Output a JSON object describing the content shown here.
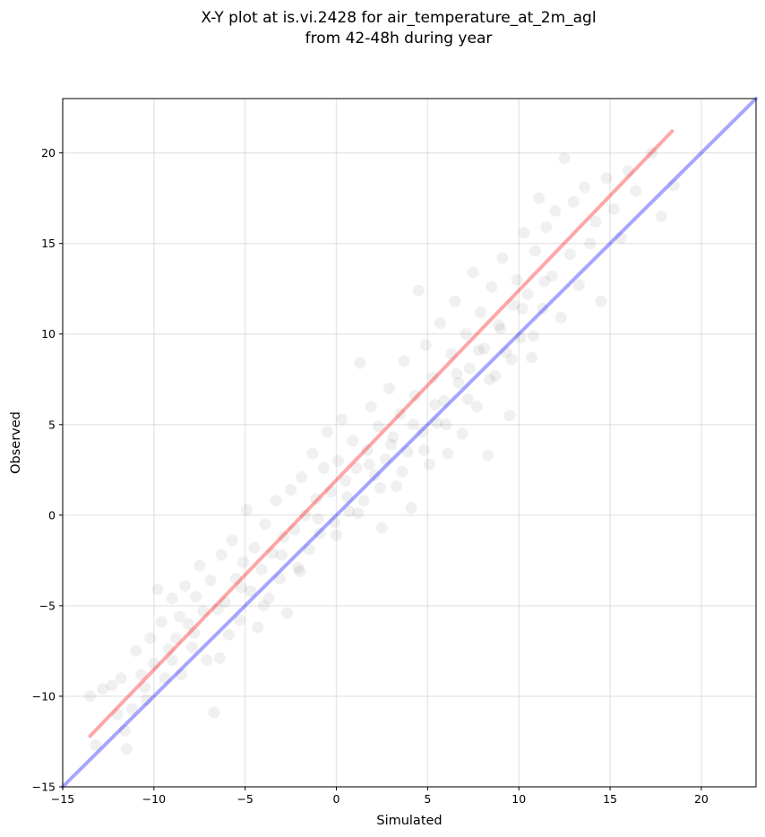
{
  "chart_data": {
    "type": "scatter",
    "title_lines": [
      "X-Y plot at is.vi.2428 for air_temperature_at_2m_agl",
      "from 42-48h during year"
    ],
    "xlabel": "Simulated",
    "ylabel": "Observed",
    "xlim": [
      -15,
      23
    ],
    "ylim": [
      -15,
      23
    ],
    "xticks": [
      -15,
      -10,
      -5,
      0,
      5,
      10,
      15,
      20
    ],
    "yticks": [
      -15,
      -10,
      -5,
      0,
      5,
      10,
      15,
      20
    ],
    "xtick_labels": [
      "−15",
      "−10",
      "−5",
      "0",
      "5",
      "10",
      "15",
      "20"
    ],
    "ytick_labels": [
      "−15",
      "−10",
      "−5",
      "0",
      "5",
      "10",
      "15",
      "20"
    ],
    "grid": true,
    "point_color": "#000000",
    "point_alpha": 0.06,
    "points": [
      [
        -13.5,
        -10.0
      ],
      [
        -13.2,
        -12.7
      ],
      [
        -12.8,
        -9.6
      ],
      [
        -12.3,
        -9.4
      ],
      [
        -11.8,
        -9.0
      ],
      [
        -11.6,
        -11.9
      ],
      [
        -11.5,
        -12.9
      ],
      [
        -11.2,
        -10.7
      ],
      [
        -11.0,
        -7.5
      ],
      [
        -10.7,
        -8.8
      ],
      [
        -10.4,
        -10.2
      ],
      [
        -10.2,
        -6.8
      ],
      [
        -10.0,
        -8.2
      ],
      [
        -9.8,
        -4.1
      ],
      [
        -9.6,
        -5.9
      ],
      [
        -9.4,
        -9.0
      ],
      [
        -9.2,
        -7.4
      ],
      [
        -9.0,
        -4.6
      ],
      [
        -8.8,
        -6.8
      ],
      [
        -8.6,
        -5.6
      ],
      [
        -8.5,
        -8.8
      ],
      [
        -8.3,
        -3.9
      ],
      [
        -8.1,
        -6.0
      ],
      [
        -7.9,
        -7.3
      ],
      [
        -7.7,
        -4.5
      ],
      [
        -7.5,
        -2.8
      ],
      [
        -7.3,
        -5.3
      ],
      [
        -7.1,
        -8.0
      ],
      [
        -6.9,
        -3.6
      ],
      [
        -6.7,
        -10.9
      ],
      [
        -6.5,
        -5.2
      ],
      [
        -6.3,
        -2.2
      ],
      [
        -6.1,
        -4.8
      ],
      [
        -5.9,
        -6.6
      ],
      [
        -5.7,
        -1.4
      ],
      [
        -5.5,
        -3.5
      ],
      [
        -5.3,
        -5.8
      ],
      [
        -5.1,
        -2.6
      ],
      [
        -4.9,
        0.3
      ],
      [
        -4.7,
        -4.2
      ],
      [
        -4.5,
        -1.8
      ],
      [
        -4.3,
        -6.2
      ],
      [
        -4.1,
        -3.0
      ],
      [
        -3.9,
        -0.5
      ],
      [
        -3.7,
        -4.6
      ],
      [
        -3.5,
        -2.1
      ],
      [
        -3.3,
        0.8
      ],
      [
        -3.1,
        -3.5
      ],
      [
        -2.9,
        -1.2
      ],
      [
        -2.7,
        -5.4
      ],
      [
        -2.5,
        1.4
      ],
      [
        -2.3,
        -0.8
      ],
      [
        -2.1,
        -2.9
      ],
      [
        -1.9,
        2.1
      ],
      [
        -1.7,
        0.0
      ],
      [
        -1.5,
        -1.9
      ],
      [
        -1.3,
        3.4
      ],
      [
        -1.1,
        0.9
      ],
      [
        -0.9,
        -1.0
      ],
      [
        -0.7,
        2.6
      ],
      [
        -0.5,
        4.6
      ],
      [
        -0.3,
        1.3
      ],
      [
        -0.1,
        -0.4
      ],
      [
        0.1,
        3.0
      ],
      [
        0.3,
        5.3
      ],
      [
        0.5,
        1.9
      ],
      [
        0.7,
        0.2
      ],
      [
        0.9,
        4.1
      ],
      [
        1.1,
        2.6
      ],
      [
        1.3,
        8.4
      ],
      [
        1.5,
        0.8
      ],
      [
        1.7,
        3.6
      ],
      [
        1.9,
        6.0
      ],
      [
        2.1,
        2.2
      ],
      [
        2.3,
        4.9
      ],
      [
        2.5,
        -0.7
      ],
      [
        2.7,
        3.1
      ],
      [
        2.9,
        7.0
      ],
      [
        3.1,
        4.3
      ],
      [
        3.3,
        1.6
      ],
      [
        3.5,
        5.6
      ],
      [
        3.7,
        8.5
      ],
      [
        3.9,
        3.5
      ],
      [
        4.1,
        0.4
      ],
      [
        4.3,
        6.6
      ],
      [
        4.5,
        12.4
      ],
      [
        4.7,
        4.6
      ],
      [
        4.9,
        9.4
      ],
      [
        5.1,
        2.8
      ],
      [
        5.3,
        7.6
      ],
      [
        5.5,
        5.1
      ],
      [
        5.7,
        10.6
      ],
      [
        5.9,
        6.3
      ],
      [
        6.1,
        3.4
      ],
      [
        6.3,
        8.9
      ],
      [
        6.5,
        11.8
      ],
      [
        6.7,
        7.3
      ],
      [
        6.9,
        4.5
      ],
      [
        7.1,
        10.0
      ],
      [
        7.3,
        8.1
      ],
      [
        7.5,
        13.4
      ],
      [
        7.7,
        6.0
      ],
      [
        7.9,
        11.2
      ],
      [
        8.1,
        9.2
      ],
      [
        8.3,
        3.3
      ],
      [
        8.5,
        12.6
      ],
      [
        8.7,
        7.7
      ],
      [
        8.9,
        10.5
      ],
      [
        9.1,
        14.2
      ],
      [
        9.3,
        9.0
      ],
      [
        9.5,
        5.5
      ],
      [
        9.7,
        11.6
      ],
      [
        9.9,
        13.0
      ],
      [
        10.1,
        9.8
      ],
      [
        10.3,
        15.6
      ],
      [
        10.5,
        12.2
      ],
      [
        10.7,
        8.7
      ],
      [
        10.9,
        14.6
      ],
      [
        11.1,
        17.5
      ],
      [
        11.3,
        11.4
      ],
      [
        11.5,
        15.9
      ],
      [
        11.8,
        13.2
      ],
      [
        12.0,
        16.8
      ],
      [
        12.3,
        10.9
      ],
      [
        12.5,
        19.7
      ],
      [
        12.8,
        14.4
      ],
      [
        13.0,
        17.3
      ],
      [
        13.3,
        12.7
      ],
      [
        13.6,
        18.1
      ],
      [
        13.9,
        15.0
      ],
      [
        14.2,
        16.2
      ],
      [
        14.5,
        11.8
      ],
      [
        14.8,
        18.6
      ],
      [
        15.2,
        16.9
      ],
      [
        15.6,
        15.3
      ],
      [
        16.4,
        17.9
      ],
      [
        17.3,
        20.0
      ],
      [
        17.8,
        16.5
      ],
      [
        18.5,
        18.2
      ],
      [
        16.0,
        19.0
      ],
      [
        -12.0,
        -11.0
      ],
      [
        -10.5,
        -9.5
      ],
      [
        -9.0,
        -8.0
      ],
      [
        -7.8,
        -6.5
      ],
      [
        -6.4,
        -7.9
      ],
      [
        -5.2,
        -4.0
      ],
      [
        -4.0,
        -5.0
      ],
      [
        -3.0,
        -2.2
      ],
      [
        -2.0,
        -3.1
      ],
      [
        -1.0,
        -0.2
      ],
      [
        0.0,
        -1.1
      ],
      [
        0.6,
        1.0
      ],
      [
        1.2,
        0.1
      ],
      [
        1.8,
        2.8
      ],
      [
        2.4,
        1.5
      ],
      [
        3.0,
        3.9
      ],
      [
        3.6,
        2.4
      ],
      [
        4.2,
        5.0
      ],
      [
        4.8,
        3.6
      ],
      [
        5.4,
        6.1
      ],
      [
        6.0,
        5.0
      ],
      [
        6.6,
        7.8
      ],
      [
        7.2,
        6.4
      ],
      [
        7.8,
        9.1
      ],
      [
        8.4,
        7.5
      ],
      [
        9.0,
        10.3
      ],
      [
        9.6,
        8.6
      ],
      [
        10.2,
        11.4
      ],
      [
        10.8,
        9.9
      ],
      [
        11.4,
        12.9
      ]
    ],
    "lines": [
      {
        "color": "#ff0000",
        "alpha": 0.35,
        "x": [
          -13.5,
          18.4
        ],
        "y": [
          -12.2,
          21.2
        ]
      },
      {
        "color": "#0000ff",
        "alpha": 0.35,
        "x": [
          -15,
          23
        ],
        "y": [
          -15,
          23
        ]
      }
    ]
  }
}
